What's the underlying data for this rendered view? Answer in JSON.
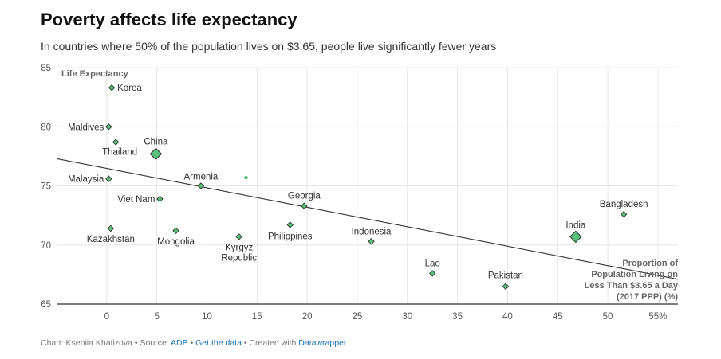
{
  "header": {
    "title": "Poverty affects life expectancy",
    "subtitle": "In countries where 50% of the population lives on $3.65, people live significantly fewer years"
  },
  "footer": {
    "prefix": "Chart: Kseniia Khafizova • Source: ",
    "source_link": "ADB",
    "sep1": " • ",
    "data_link": "Get the data",
    "sep2": " • Created with ",
    "tool_link": "Datawrapper"
  },
  "chart_data": {
    "type": "scatter",
    "xlabel": "Proportion of Population Living on Less Than $3.65 a Day (2017 PPP) (%)",
    "ylabel": "Life Expectancy",
    "xlim": [
      -5,
      57
    ],
    "ylim": [
      65,
      85
    ],
    "x_ticks": [
      0,
      5,
      10,
      15,
      20,
      25,
      30,
      35,
      40,
      45,
      50,
      55
    ],
    "x_tick_labels": [
      "0",
      "5",
      "10",
      "15",
      "20",
      "25",
      "30",
      "35",
      "40",
      "45",
      "50",
      "55%"
    ],
    "y_ticks": [
      65,
      70,
      75,
      80,
      85
    ],
    "grid": true,
    "point_color": "#5bbf7d",
    "trendline": {
      "x": [
        -5,
        57
      ],
      "y": [
        77.3,
        67.1
      ]
    },
    "points": [
      {
        "label": "Korea",
        "x": 0.5,
        "y": 83.3,
        "size": "small"
      },
      {
        "label": "Maldives",
        "x": 0.2,
        "y": 80.0,
        "size": "small"
      },
      {
        "label": "Thailand",
        "x": 0.9,
        "y": 78.7,
        "size": "small"
      },
      {
        "label": "China",
        "x": 4.9,
        "y": 77.7,
        "size": "large"
      },
      {
        "label": "Malaysia",
        "x": 0.2,
        "y": 75.6,
        "size": "small"
      },
      {
        "label": "Armenia",
        "x": 9.4,
        "y": 75.0,
        "size": "small"
      },
      {
        "label": "",
        "x": 13.9,
        "y": 75.7,
        "size": "tiny"
      },
      {
        "label": "Viet Nam",
        "x": 5.3,
        "y": 73.9,
        "size": "small"
      },
      {
        "label": "Georgia",
        "x": 19.7,
        "y": 73.3,
        "size": "small"
      },
      {
        "label": "Kazakhstan",
        "x": 0.4,
        "y": 71.4,
        "size": "small"
      },
      {
        "label": "Mongolia",
        "x": 6.9,
        "y": 71.2,
        "size": "small"
      },
      {
        "label": "Kyrgyz Republic",
        "x": 13.2,
        "y": 70.7,
        "size": "small"
      },
      {
        "label": "Philippines",
        "x": 18.3,
        "y": 71.7,
        "size": "small"
      },
      {
        "label": "Indonesia",
        "x": 26.4,
        "y": 70.3,
        "size": "small"
      },
      {
        "label": "Lao",
        "x": 32.5,
        "y": 67.6,
        "size": "small"
      },
      {
        "label": "Pakistan",
        "x": 39.8,
        "y": 66.5,
        "size": "small"
      },
      {
        "label": "India",
        "x": 46.8,
        "y": 70.7,
        "size": "large"
      },
      {
        "label": "Bangladesh",
        "x": 51.6,
        "y": 72.6,
        "size": "small"
      }
    ]
  }
}
